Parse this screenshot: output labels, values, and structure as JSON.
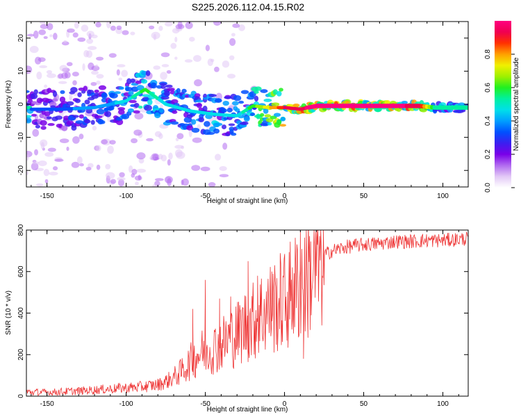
{
  "title": "S225.2026.112.04.15.R02",
  "chart_data": [
    {
      "type": "heatmap",
      "xlabel": "Height of straight line (km)",
      "ylabel": "Frequency (Hz)",
      "xlim": [
        -163,
        116
      ],
      "ylim": [
        -25,
        25
      ],
      "x_ticks": [
        -150,
        -100,
        -50,
        0,
        50,
        100
      ],
      "y_ticks": [
        -20,
        -10,
        0,
        10,
        20
      ],
      "colorbar": {
        "label": "Normalized spectral amplitude",
        "range": [
          0,
          1
        ],
        "ticks": [
          "0.0",
          "0.2",
          "0.4",
          "0.6",
          "0.8"
        ],
        "colors": [
          "#ffffff",
          "#e2c8f6",
          "#b26cf0",
          "#7a00e8",
          "#3b1ff0",
          "#0050ff",
          "#00a0ff",
          "#00e0e8",
          "#00f0a0",
          "#20f020",
          "#a0f000",
          "#f0f000",
          "#ffa000",
          "#ff3000",
          "#f00050",
          "#ff0080"
        ]
      },
      "ridge": [
        {
          "x": -160,
          "f": -1.5,
          "a": 0.3
        },
        {
          "x": -140,
          "f": -1.5,
          "a": 0.35
        },
        {
          "x": -120,
          "f": -1,
          "a": 0.4
        },
        {
          "x": -100,
          "f": 1,
          "a": 0.45
        },
        {
          "x": -88,
          "f": 4.5,
          "a": 0.6
        },
        {
          "x": -75,
          "f": 0,
          "a": 0.45
        },
        {
          "x": -60,
          "f": -2,
          "a": 0.45
        },
        {
          "x": -45,
          "f": -3,
          "a": 0.5
        },
        {
          "x": -30,
          "f": -3.5,
          "a": 0.45
        },
        {
          "x": -20,
          "f": -0.5,
          "a": 0.6
        },
        {
          "x": -10,
          "f": -1,
          "a": 0.75
        },
        {
          "x": 0,
          "f": -1,
          "a": 0.9
        },
        {
          "x": 10,
          "f": -1.5,
          "a": 0.95
        },
        {
          "x": 20,
          "f": -0.5,
          "a": 1.0
        },
        {
          "x": 60,
          "f": -0.5,
          "a": 1.0
        },
        {
          "x": 85,
          "f": -0.5,
          "a": 0.95
        },
        {
          "x": 95,
          "f": -1,
          "a": 0.55
        },
        {
          "x": 115,
          "f": -1,
          "a": 0.5
        }
      ]
    },
    {
      "type": "line",
      "xlabel": "Height of straight line (km)",
      "ylabel": "SNR (10 * v/v)",
      "xlim": [
        -163,
        116
      ],
      "ylim": [
        0,
        800
      ],
      "x_ticks": [
        -150,
        -100,
        -50,
        0,
        50,
        100
      ],
      "y_ticks": [
        0,
        200,
        400,
        600,
        800
      ],
      "color": "#ee3333",
      "series": [
        {
          "x": [
            -163,
            -150,
            -140,
            -130,
            -120,
            -110,
            -100,
            -90,
            -80,
            -75,
            -70,
            -65,
            -60,
            -55,
            -50,
            -45,
            -40,
            -35,
            -30,
            -25,
            -20,
            -15,
            -10,
            -5,
            0,
            5,
            10,
            15,
            20,
            25,
            30,
            40,
            50,
            60,
            70,
            80,
            90,
            100,
            110,
            116
          ],
          "y": [
            20,
            18,
            22,
            25,
            30,
            35,
            40,
            45,
            55,
            70,
            90,
            120,
            160,
            200,
            220,
            230,
            250,
            280,
            300,
            340,
            360,
            400,
            420,
            440,
            460,
            500,
            540,
            580,
            620,
            680,
            700,
            720,
            730,
            735,
            745,
            745,
            750,
            750,
            755,
            760
          ]
        }
      ],
      "spikes": [
        {
          "x": -58,
          "y": 420
        },
        {
          "x": -50,
          "y": 560
        },
        {
          "x": -41,
          "y": 470
        },
        {
          "x": -34,
          "y": 480
        },
        {
          "x": -28,
          "y": 410
        },
        {
          "x": -23,
          "y": 650
        },
        {
          "x": -17,
          "y": 580
        },
        {
          "x": -8,
          "y": 600
        },
        {
          "x": 5,
          "y": 620
        },
        {
          "x": 10,
          "y": 800
        },
        {
          "x": 12,
          "y": 180
        },
        {
          "x": 15,
          "y": 800
        }
      ]
    }
  ]
}
